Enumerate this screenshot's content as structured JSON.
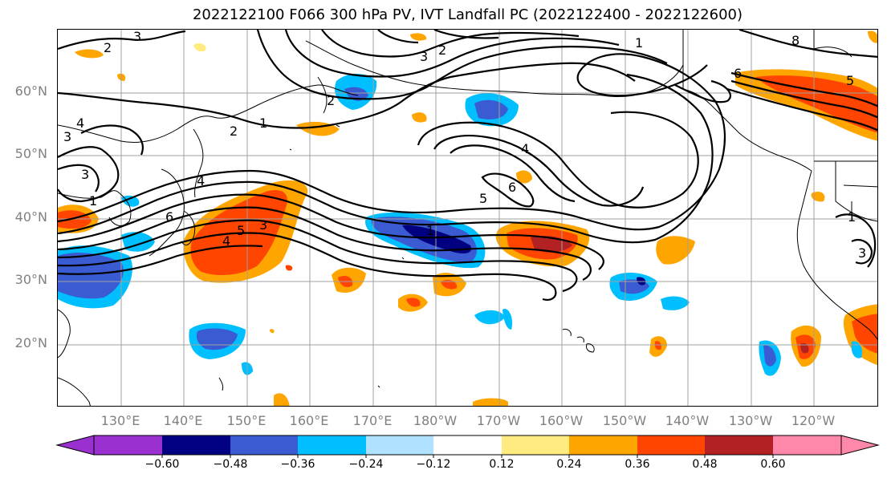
{
  "title": "2022122100 F066 300 hPa PV, IVT Landfall PC (2022122400 - 2022122600)",
  "lat_labels": [
    "60°N",
    "50°N",
    "40°N",
    "30°N",
    "20°N"
  ],
  "lon_labels": [
    "130°E",
    "140°E",
    "150°E",
    "160°E",
    "170°E",
    "180°W",
    "170°W",
    "160°W",
    "150°W",
    "140°W",
    "130°W",
    "120°W"
  ],
  "colorbar": {
    "tick_labels": [
      "−0.60",
      "−0.48",
      "−0.36",
      "−0.24",
      "−0.12",
      "0.12",
      "0.24",
      "0.36",
      "0.48",
      "0.60"
    ],
    "colors": [
      "#9b30d0",
      "#000080",
      "#3a5bd1",
      "#00bfff",
      "#b0e2ff",
      "#ffffff",
      "#ffeb80",
      "#ffa500",
      "#ff4500",
      "#b22222",
      "#ff88aa"
    ]
  },
  "contour_labels": [
    "3",
    "2",
    "3",
    "2",
    "1",
    "8",
    "6",
    "5",
    "4",
    "2",
    "1",
    "4",
    "6",
    "5",
    "4",
    "5",
    "3",
    "1",
    "6",
    "3",
    "4",
    "2",
    "3",
    "1",
    "1",
    "3"
  ],
  "colors": {
    "grid": "#a0a0a0",
    "coast": "#000000",
    "contour": "#000000",
    "axis_label": "#808080"
  }
}
